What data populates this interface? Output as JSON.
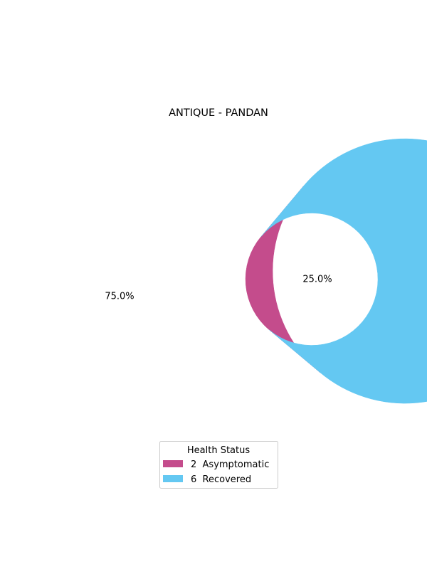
{
  "chart_data": {
    "type": "pie",
    "style": "donut",
    "title": "ANTIQUE - PANDAN",
    "slices": [
      {
        "label": "2  Asymptomatic",
        "value": 2,
        "percent_label": "25.0%",
        "color": "#c44c8c"
      },
      {
        "label": "6  Recovered",
        "value": 6,
        "percent_label": "75.0%",
        "color": "#64c8f2"
      }
    ],
    "start_angle_deg": 50,
    "direction": "counterclockwise",
    "legend": {
      "title": "Health Status",
      "placement": "bottom-center"
    }
  }
}
